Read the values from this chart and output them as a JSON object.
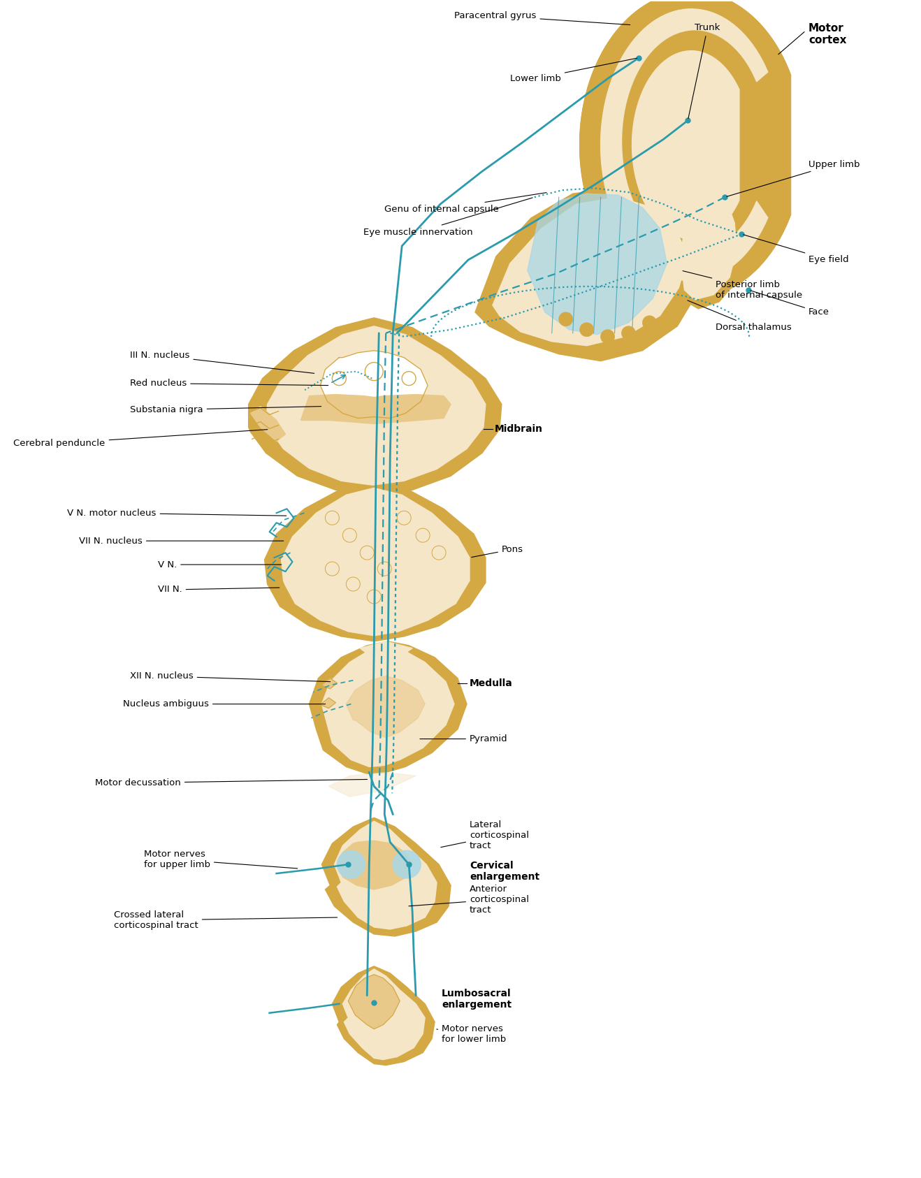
{
  "bg_color": "#ffffff",
  "tan_light": "#f5e6c8",
  "tan_mid": "#e8c98a",
  "tan_dark": "#d4a843",
  "teal": "#2a9aad",
  "blue_fill": "#a8d8e8",
  "labels": {
    "motor_cortex": "Motor\ncortex",
    "paracentral_gyrus": "Paracentral gyrus",
    "trunk": "Trunk",
    "lower_limb": "Lower limb",
    "upper_limb": "Upper limb",
    "eye_field": "Eye field",
    "face": "Face",
    "eye_muscle": "Eye muscle innervation",
    "genu": "Genu of internal capsule",
    "iii_nucleus": "III N. nucleus",
    "red_nucleus": "Red nucleus",
    "substantia_nigra": "Substania nigra",
    "cerebral_penduncle": "Cerebral penduncle",
    "midbrain": "Midbrain",
    "posterior_limb": "Posterior limb\nof internal capsule",
    "dorsal_thalamus": "Dorsal thalamus",
    "v_motor": "V N. motor nucleus",
    "vii_nucleus": "VII N. nucleus",
    "v_n": "V N.",
    "vii_n": "VII N.",
    "pons": "Pons",
    "xii_nucleus": "XII N. nucleus",
    "nucleus_ambiguus": "Nucleus ambiguus",
    "medulla": "Medulla",
    "pyramid": "Pyramid",
    "motor_decussation": "Motor decussation",
    "lateral_cst": "Lateral\ncorticospinal\ntract",
    "cervical": "Cervical\nenlargement",
    "motor_upper": "Motor nerves\nfor upper limb",
    "anterior_cst": "Anterior\ncorticospinal\ntract",
    "crossed_lateral": "Crossed lateral\ncorticospinal tract",
    "lumbosacral": "Lumbosacral\nenlargement",
    "motor_lower": "Motor nerves\nfor lower limb"
  }
}
